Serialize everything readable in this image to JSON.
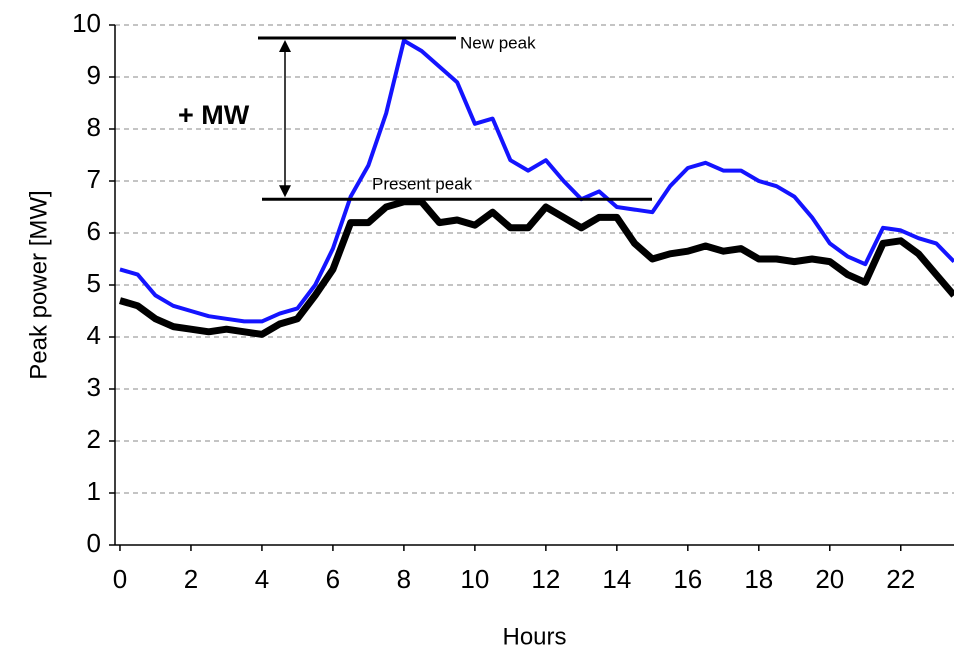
{
  "chart_data": {
    "type": "line",
    "x_label": "Hours",
    "y_label": "Peak power [MW]",
    "x": [
      0,
      0.5,
      1,
      1.5,
      2,
      2.5,
      3,
      3.5,
      4,
      4.5,
      5,
      5.5,
      6,
      6.5,
      7,
      7.5,
      8,
      8.5,
      9,
      9.5,
      10,
      10.5,
      11,
      11.5,
      12,
      12.5,
      13,
      13.5,
      14,
      14.5,
      15,
      15.5,
      16,
      16.5,
      17,
      17.5,
      18,
      18.5,
      19,
      19.5,
      20,
      20.5,
      21,
      21.5,
      22,
      22.5,
      23,
      23.5
    ],
    "series": [
      {
        "color": "#1414ff",
        "values": [
          5.3,
          5.2,
          4.8,
          4.6,
          4.5,
          4.4,
          4.35,
          4.3,
          4.3,
          4.45,
          4.55,
          5.0,
          5.7,
          6.7,
          7.3,
          8.3,
          9.7,
          9.5,
          9.2,
          8.9,
          8.1,
          8.2,
          7.4,
          7.2,
          7.4,
          7.0,
          6.65,
          6.8,
          6.5,
          6.45,
          6.4,
          6.9,
          7.25,
          7.35,
          7.2,
          7.2,
          7.0,
          6.9,
          6.7,
          6.3,
          5.8,
          5.55,
          5.4,
          6.1,
          6.05,
          5.9,
          5.8,
          5.45
        ]
      },
      {
        "color": "#000000",
        "values": [
          4.7,
          4.6,
          4.35,
          4.2,
          4.15,
          4.1,
          4.15,
          4.1,
          4.05,
          4.25,
          4.35,
          4.8,
          5.3,
          6.2,
          6.2,
          6.5,
          6.6,
          6.6,
          6.2,
          6.25,
          6.15,
          6.4,
          6.1,
          6.1,
          6.5,
          6.3,
          6.1,
          6.3,
          6.3,
          5.8,
          5.5,
          5.6,
          5.65,
          5.75,
          5.65,
          5.7,
          5.5,
          5.5,
          5.45,
          5.5,
          5.45,
          5.2,
          5.05,
          5.8,
          5.85,
          5.6,
          5.2,
          4.8
        ]
      }
    ],
    "xlim": [
      -0.14,
      23.5
    ],
    "ylim": [
      0,
      10
    ],
    "xticks": [
      0,
      2,
      4,
      6,
      8,
      10,
      12,
      14,
      16,
      18,
      20,
      22
    ],
    "yticks": [
      0,
      1,
      2,
      3,
      4,
      5,
      6,
      7,
      8,
      9,
      10
    ],
    "grid": true,
    "annotations": [
      {
        "text": "New peak",
        "y": 9.75
      },
      {
        "text": "Present peak",
        "y": 6.65
      }
    ],
    "delta_label": "+ MW"
  }
}
